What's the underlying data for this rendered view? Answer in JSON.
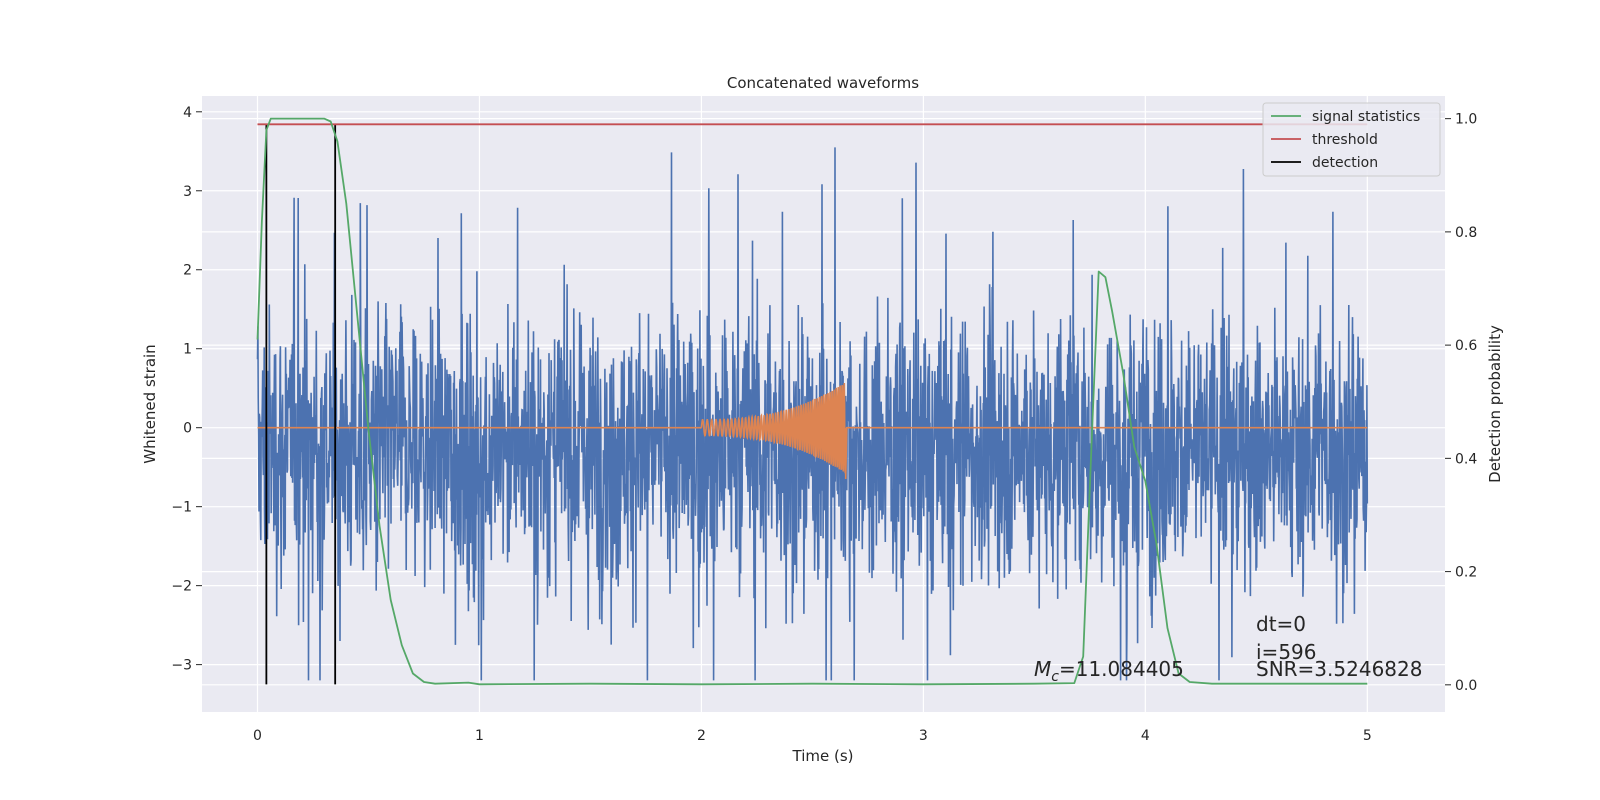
{
  "chart_data": {
    "type": "line",
    "title": "Concatenated waveforms",
    "xlabel": "Time (s)",
    "ylabel": "Whitened strain",
    "ylabel_right": "Detection probability",
    "xlim": [
      -0.25,
      5.35
    ],
    "ylim": [
      -3.6,
      4.2
    ],
    "ylim_right": [
      -0.048,
      1.04
    ],
    "x_ticks": [
      "0",
      "1",
      "2",
      "3",
      "4",
      "5"
    ],
    "x_tick_values": [
      0,
      1,
      2,
      3,
      4,
      5
    ],
    "y_ticks": [
      "−3",
      "−2",
      "−1",
      "0",
      "1",
      "2",
      "3",
      "4"
    ],
    "y_tick_values": [
      -3,
      -2,
      -1,
      0,
      1,
      2,
      3,
      4
    ],
    "y_right_ticks": [
      "0.0",
      "0.2",
      "0.4",
      "0.6",
      "0.8",
      "1.0"
    ],
    "y_right_tick_values": [
      0.0,
      0.2,
      0.4,
      0.6,
      0.8,
      1.0
    ],
    "grid": true,
    "legend_position": "top-right",
    "legend": [
      "signal statistics",
      "threshold",
      "detection"
    ],
    "series": [
      {
        "name": "signal statistics",
        "axis": "right",
        "color": "#55a868",
        "x": [
          0.0,
          0.02,
          0.04,
          0.06,
          0.1,
          0.2,
          0.3,
          0.33,
          0.36,
          0.4,
          0.45,
          0.5,
          0.55,
          0.6,
          0.65,
          0.7,
          0.75,
          0.8,
          0.95,
          1.0,
          1.5,
          2.0,
          2.5,
          3.0,
          3.5,
          3.68,
          3.72,
          3.76,
          3.79,
          3.82,
          3.85,
          3.9,
          3.95,
          4.0,
          4.05,
          4.1,
          4.15,
          4.2,
          4.3,
          5.0
        ],
        "y": [
          0.61,
          0.82,
          0.98,
          1.0,
          1.0,
          1.0,
          1.0,
          0.995,
          0.96,
          0.85,
          0.65,
          0.45,
          0.28,
          0.15,
          0.07,
          0.02,
          0.005,
          0.002,
          0.004,
          0.001,
          0.002,
          0.001,
          0.002,
          0.001,
          0.002,
          0.003,
          0.05,
          0.45,
          0.73,
          0.72,
          0.66,
          0.55,
          0.42,
          0.36,
          0.25,
          0.1,
          0.02,
          0.005,
          0.002,
          0.002
        ]
      },
      {
        "name": "threshold",
        "axis": "right",
        "color": "#c44e52",
        "x": [
          0.0,
          5.0
        ],
        "y": [
          0.99,
          0.99
        ]
      },
      {
        "name": "detection",
        "axis": "left",
        "color": "#000000",
        "type": "vlines",
        "x": [
          0.04,
          0.35
        ],
        "y_range": [
          -3.25,
          3.85
        ]
      },
      {
        "name": "",
        "axis": "left",
        "color": "#4c72b0",
        "x_range": [
          0.0,
          5.0
        ],
        "description_values": {
          "typical_amplitude": 1.0,
          "max": 3.85,
          "min": -3.2
        }
      },
      {
        "name": "",
        "axis": "left",
        "color": "#dd8452",
        "x_range": [
          0.0,
          5.0
        ],
        "chirp_start": 2.0,
        "chirp_end": 2.65,
        "chirp_peak": 0.58,
        "chirp_trough": -0.65
      }
    ],
    "annotations": [
      {
        "text": "dt=0",
        "x": 4.5,
        "y": -2.45
      },
      {
        "text": "i=596",
        "x": 4.5,
        "y": -2.8
      },
      {
        "text": "SNR=3.5246828",
        "x": 4.5,
        "y": -3.12
      },
      {
        "mc_symbol": "M",
        "mc_sub": "c",
        "text": "=11.084405",
        "x": 3.5,
        "y": -3.12
      }
    ]
  },
  "colors": {
    "background": "#eaeaf2",
    "grid": "#ffffff",
    "noise": "#4c72b0",
    "chirp": "#dd8452",
    "stat": "#55a868",
    "threshold": "#c44e52",
    "detection": "#000000"
  }
}
